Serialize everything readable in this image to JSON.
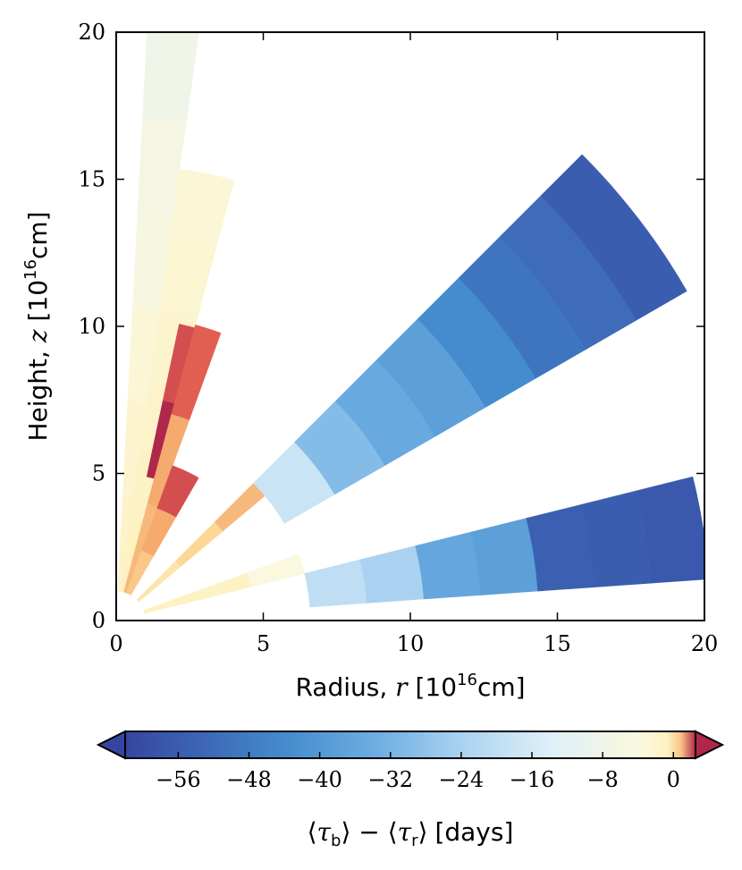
{
  "chart_data": {
    "type": "heatmap",
    "title": "",
    "xlabel_parts": {
      "name": "Radius,",
      "var": "r",
      "open": "[10",
      "exp": "16",
      "unit": "cm]"
    },
    "ylabel_parts": {
      "name": "Height,",
      "var": "z",
      "open": "[10",
      "exp": "16",
      "unit": "cm]"
    },
    "xlim": [
      0,
      20
    ],
    "ylim": [
      0,
      20
    ],
    "x_ticks": [
      0,
      5,
      10,
      15,
      20
    ],
    "y_ticks": [
      0,
      5,
      10,
      15,
      20
    ],
    "x_tick_labels": [
      "0",
      "5",
      "10",
      "15",
      "20"
    ],
    "y_tick_labels": [
      "0",
      "5",
      "10",
      "15",
      "20"
    ],
    "colorbar": {
      "label": "⟨τb⟩ − ⟨τr⟩ [days]",
      "label_parts": {
        "a": "τ",
        "a_sub": "b",
        "b": "τ",
        "b_sub": "r",
        "unit": "[days]"
      },
      "range": [
        -62,
        2.5
      ],
      "ticks": [
        -56,
        -48,
        -40,
        -32,
        -24,
        -16,
        -8,
        0
      ],
      "tick_labels": [
        "−56",
        "−48",
        "−40",
        "−32",
        "−24",
        "−16",
        "−8",
        "0"
      ],
      "extend": "both",
      "colormap": "RdYlBu_r"
    },
    "wedges": [
      {
        "name": "wedge-1",
        "angle_deg": [
          82,
          87
        ],
        "r_range": [
          1,
          20.4
        ],
        "value": -2,
        "radial_values": [
          -1.5,
          -2,
          -3,
          -5,
          -6,
          -8
        ]
      },
      {
        "name": "wedge-2",
        "angle_deg": [
          75,
          82
        ],
        "r_range": [
          1,
          15.5
        ],
        "value": -1,
        "radial_values": [
          -0.5,
          -1,
          -1.5,
          -2,
          -2.5,
          -3
        ]
      },
      {
        "name": "wedge-3",
        "angle_deg": [
          75,
          78
        ],
        "r_range": [
          5,
          10.3
        ],
        "value": 2,
        "radial_values": [
          2.5,
          2.0
        ]
      },
      {
        "name": "wedge-4",
        "angle_deg": [
          70,
          75
        ],
        "r_range": [
          1,
          10.4
        ],
        "value": 1,
        "radial_values": [
          1.0,
          1.2,
          1.8
        ]
      },
      {
        "name": "wedge-5",
        "angle_deg": [
          60,
          70
        ],
        "r_range": [
          1,
          5.6
        ],
        "value": 1.5,
        "radial_values": [
          0.8,
          1.2,
          2.0
        ]
      },
      {
        "name": "wedge-6",
        "angle_deg": [
          40,
          45
        ],
        "r_range": [
          1,
          6.6
        ],
        "value": 0.8,
        "radial_values": [
          0.3,
          0.6,
          1.0
        ]
      },
      {
        "name": "wedge-7",
        "angle_deg": [
          30,
          45
        ],
        "r_range": [
          6.6,
          22.4
        ],
        "value": -36,
        "radial_values": [
          -18,
          -30,
          -35,
          -38,
          -44,
          -50,
          -52,
          -56
        ]
      },
      {
        "name": "wedge-8",
        "angle_deg": [
          14,
          20
        ],
        "r_range": [
          1,
          6.6
        ],
        "value": -1,
        "radial_values": [
          -0.5,
          -1,
          -4
        ]
      },
      {
        "name": "wedge-9",
        "angle_deg": [
          4,
          14
        ],
        "r_range": [
          6.6,
          20.2
        ],
        "value": -40,
        "radial_values": [
          -20,
          -24,
          -36,
          -38,
          -55,
          -56,
          -57
        ]
      }
    ]
  }
}
